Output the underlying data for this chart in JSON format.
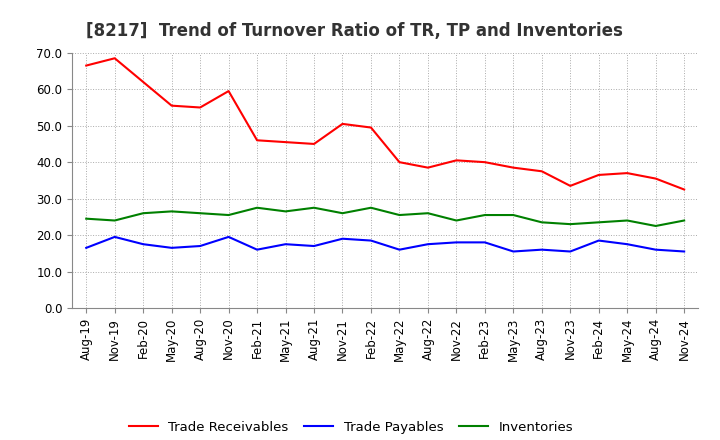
{
  "title": "[8217]  Trend of Turnover Ratio of TR, TP and Inventories",
  "x_labels": [
    "Aug-19",
    "Nov-19",
    "Feb-20",
    "May-20",
    "Aug-20",
    "Nov-20",
    "Feb-21",
    "May-21",
    "Aug-21",
    "Nov-21",
    "Feb-22",
    "May-22",
    "Aug-22",
    "Nov-22",
    "Feb-23",
    "May-23",
    "Aug-23",
    "Nov-23",
    "Feb-24",
    "May-24",
    "Aug-24",
    "Nov-24"
  ],
  "trade_receivables": [
    66.5,
    68.5,
    62.0,
    55.5,
    55.0,
    59.5,
    46.0,
    45.5,
    45.0,
    50.5,
    49.5,
    40.0,
    38.5,
    40.5,
    40.0,
    38.5,
    37.5,
    33.5,
    36.5,
    37.0,
    35.5,
    32.5
  ],
  "trade_payables": [
    16.5,
    19.5,
    17.5,
    16.5,
    17.0,
    19.5,
    16.0,
    17.5,
    17.0,
    19.0,
    18.5,
    16.0,
    17.5,
    18.0,
    18.0,
    15.5,
    16.0,
    15.5,
    18.5,
    17.5,
    16.0,
    15.5
  ],
  "inventories": [
    24.5,
    24.0,
    26.0,
    26.5,
    26.0,
    25.5,
    27.5,
    26.5,
    27.5,
    26.0,
    27.5,
    25.5,
    26.0,
    24.0,
    25.5,
    25.5,
    23.5,
    23.0,
    23.5,
    24.0,
    22.5,
    24.0
  ],
  "ylim": [
    0.0,
    70.0
  ],
  "yticks": [
    0.0,
    10.0,
    20.0,
    30.0,
    40.0,
    50.0,
    60.0,
    70.0
  ],
  "tr_color": "#ff0000",
  "tp_color": "#0000ff",
  "inv_color": "#008000",
  "bg_color": "#ffffff",
  "grid_color": "#aaaaaa",
  "title_fontsize": 12,
  "tick_fontsize": 8.5,
  "legend_fontsize": 9.5
}
